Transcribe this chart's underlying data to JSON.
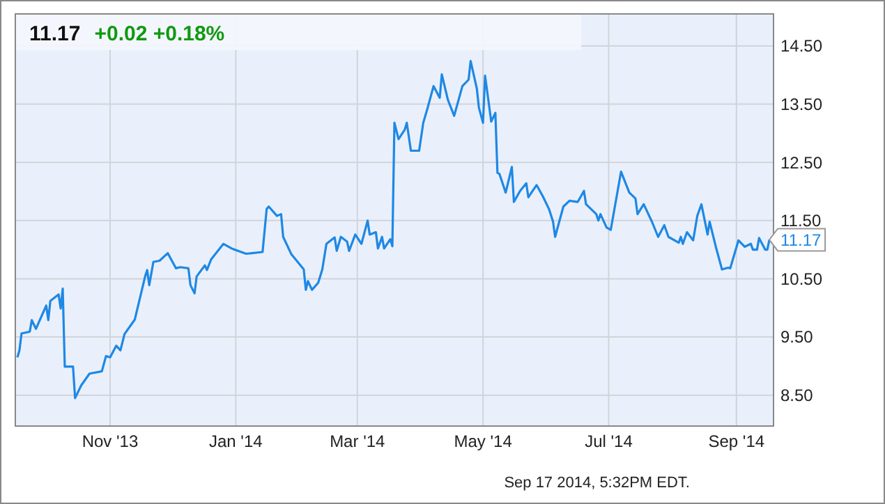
{
  "chart_data": {
    "type": "line",
    "title": "11.17",
    "subtitle": "+0.02  +0.18%",
    "x": [
      "2013-09-17",
      "2013-09-18",
      "2013-09-19",
      "2013-09-23",
      "2013-09-24",
      "2013-09-26",
      "2013-10-01",
      "2013-10-02",
      "2013-10-03",
      "2013-10-07",
      "2013-10-08",
      "2013-10-09",
      "2013-10-10",
      "2013-10-14",
      "2013-10-15",
      "2013-10-18",
      "2013-10-22",
      "2013-10-28",
      "2013-10-30",
      "2013-11-01",
      "2013-11-04",
      "2013-11-06",
      "2013-11-08",
      "2013-11-13",
      "2013-11-18",
      "2013-11-19",
      "2013-11-20",
      "2013-11-22",
      "2013-11-25",
      "2013-11-29",
      "2013-12-03",
      "2013-12-05",
      "2013-12-09",
      "2013-12-10",
      "2013-12-12",
      "2013-12-13",
      "2013-12-17",
      "2013-12-18",
      "2013-12-20",
      "2013-12-26",
      "2013-12-30",
      "2014-01-02",
      "2014-01-06",
      "2014-01-09",
      "2014-01-14",
      "2014-01-16",
      "2014-01-17",
      "2014-01-21",
      "2014-01-23",
      "2014-01-24",
      "2014-01-28",
      "2014-02-03",
      "2014-02-04",
      "2014-02-05",
      "2014-02-07",
      "2014-02-10",
      "2014-02-12",
      "2014-02-14",
      "2014-02-18",
      "2014-02-19",
      "2014-02-21",
      "2014-02-24",
      "2014-02-25",
      "2014-02-28",
      "2014-03-03",
      "2014-03-06",
      "2014-03-07",
      "2014-03-10",
      "2014-03-11",
      "2014-03-13",
      "2014-03-14",
      "2014-03-17",
      "2014-03-18",
      "2014-03-19",
      "2014-03-21",
      "2014-03-24",
      "2014-03-25",
      "2014-03-27",
      "2014-03-31",
      "2014-04-02",
      "2014-04-04",
      "2014-04-07",
      "2014-04-10",
      "2014-04-11",
      "2014-04-14",
      "2014-04-17",
      "2014-04-21",
      "2014-04-24",
      "2014-04-25",
      "2014-04-28",
      "2014-04-29",
      "2014-05-01",
      "2014-05-02",
      "2014-05-05",
      "2014-05-07",
      "2014-05-08",
      "2014-05-09",
      "2014-05-12",
      "2014-05-15",
      "2014-05-16",
      "2014-05-19",
      "2014-05-22",
      "2014-05-23",
      "2014-05-27",
      "2014-05-30",
      "2014-06-02",
      "2014-06-04",
      "2014-06-05",
      "2014-06-09",
      "2014-06-12",
      "2014-06-16",
      "2014-06-19",
      "2014-06-20",
      "2014-06-25",
      "2014-06-26",
      "2014-06-27",
      "2014-06-30",
      "2014-07-02",
      "2014-07-07",
      "2014-07-11",
      "2014-07-14",
      "2014-07-15",
      "2014-07-18",
      "2014-07-22",
      "2014-07-25",
      "2014-07-28",
      "2014-07-30",
      "2014-08-04",
      "2014-08-05",
      "2014-08-06",
      "2014-08-08",
      "2014-08-11",
      "2014-08-13",
      "2014-08-15",
      "2014-08-18",
      "2014-08-19",
      "2014-08-22",
      "2014-08-25",
      "2014-08-28",
      "2014-08-29",
      "2014-09-02",
      "2014-09-05",
      "2014-09-08",
      "2014-09-09",
      "2014-09-11",
      "2014-09-12",
      "2014-09-15",
      "2014-09-16",
      "2014-09-17"
    ],
    "series": [
      {
        "color": "#1e88e5",
        "values": [
          9.15,
          9.27,
          9.56,
          9.59,
          9.79,
          9.64,
          10.04,
          9.79,
          10.12,
          10.23,
          9.99,
          10.33,
          8.99,
          8.99,
          8.45,
          8.67,
          8.87,
          8.91,
          9.17,
          9.15,
          9.35,
          9.27,
          9.55,
          9.8,
          10.54,
          10.65,
          10.39,
          10.79,
          10.81,
          10.94,
          10.68,
          10.7,
          10.68,
          10.39,
          10.25,
          10.54,
          10.73,
          10.65,
          10.83,
          11.1,
          11.02,
          10.98,
          10.93,
          10.94,
          10.96,
          11.7,
          11.74,
          11.58,
          11.61,
          11.22,
          10.92,
          10.66,
          10.31,
          10.46,
          10.31,
          10.43,
          10.66,
          11.1,
          11.21,
          10.98,
          11.22,
          11.14,
          10.98,
          11.26,
          11.1,
          11.5,
          11.26,
          11.3,
          11.02,
          11.22,
          11.02,
          11.18,
          11.06,
          13.18,
          12.9,
          13.06,
          13.18,
          12.7,
          12.7,
          13.18,
          13.42,
          13.81,
          13.61,
          14.01,
          13.57,
          13.3,
          13.81,
          13.92,
          14.24,
          13.77,
          13.44,
          13.18,
          13.99,
          13.2,
          13.35,
          12.32,
          12.3,
          11.98,
          12.42,
          11.82,
          12.01,
          12.14,
          11.9,
          12.11,
          11.92,
          11.7,
          11.48,
          11.22,
          11.74,
          11.84,
          11.82,
          12.01,
          11.78,
          11.61,
          11.5,
          11.61,
          11.38,
          11.34,
          12.34,
          11.98,
          11.88,
          11.61,
          11.78,
          11.48,
          11.22,
          11.42,
          11.22,
          11.12,
          11.22,
          11.1,
          11.3,
          11.16,
          11.58,
          11.78,
          11.26,
          11.48,
          11.05,
          10.66,
          10.69,
          10.68,
          11.16,
          11.05,
          11.1,
          11.0,
          11.0,
          11.2,
          11.0,
          11.0,
          11.17
        ]
      }
    ],
    "xlim": [
      "2013-09-16",
      "2014-09-19"
    ],
    "xticks": [
      {
        "value": "2013-11-01",
        "label": "Nov '13"
      },
      {
        "value": "2014-01-01",
        "label": "Jan '14"
      },
      {
        "value": "2014-03-01",
        "label": "Mar '14"
      },
      {
        "value": "2014-05-01",
        "label": "May '14"
      },
      {
        "value": "2014-07-01",
        "label": "Jul '14"
      },
      {
        "value": "2014-09-01",
        "label": "Sep '14"
      }
    ],
    "ylim": [
      7.97,
      15.05
    ],
    "yticks": [
      {
        "value": 8.5,
        "label": "8.50"
      },
      {
        "value": 9.5,
        "label": "9.50"
      },
      {
        "value": 10.5,
        "label": "10.50"
      },
      {
        "value": 11.5,
        "label": "11.50"
      },
      {
        "value": 12.5,
        "label": "12.50"
      },
      {
        "value": 13.5,
        "label": "13.50"
      },
      {
        "value": 14.5,
        "label": "14.50"
      }
    ],
    "grid": true,
    "line_style": "solid",
    "marker": "none",
    "annotations": [
      {
        "text": "11.17",
        "x": "2014-09-17",
        "y": 11.17
      },
      "Sep 17 2014, 5:32PM EDT."
    ]
  }
}
